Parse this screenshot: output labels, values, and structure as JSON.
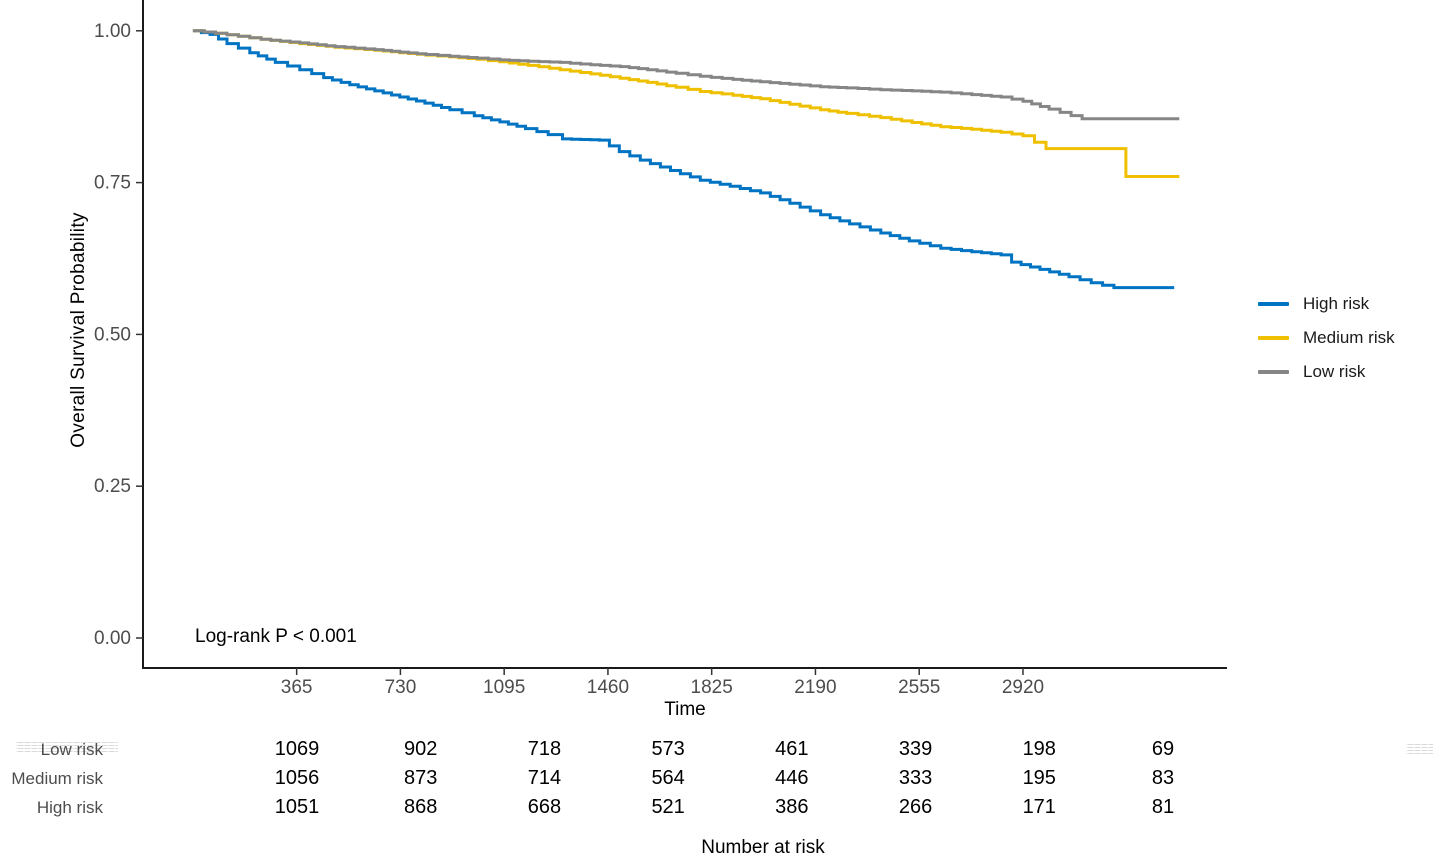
{
  "figure": {
    "y_axis_title": "Overall Survival Probability",
    "x_axis_title": "Time",
    "annotation": "Log-rank P < 0.001"
  },
  "legend": {
    "items": [
      {
        "label": "High risk",
        "color": "#0073C2"
      },
      {
        "label": "Medium risk",
        "color": "#EFC000"
      },
      {
        "label": "Low risk",
        "color": "#868686"
      }
    ]
  },
  "chart_data": {
    "type": "line",
    "subtype": "kaplan-meier-step-survival",
    "title": "",
    "xlabel": "Time",
    "ylabel": "Overall Survival Probability",
    "xlim": [
      0,
      3650
    ],
    "ylim": [
      0.0,
      1.0
    ],
    "grid": false,
    "legend_position": "right",
    "annotation": "Log-rank P < 0.001",
    "x_ticks": [
      365,
      730,
      1095,
      1460,
      1825,
      2190,
      2555,
      2920
    ],
    "y_ticks": [
      1.0,
      0.75,
      0.5,
      0.25,
      0.0
    ],
    "series": [
      {
        "name": "High risk",
        "color": "#0073C2",
        "points": [
          [
            0,
            1.0
          ],
          [
            60,
            0.994
          ],
          [
            120,
            0.979
          ],
          [
            200,
            0.964
          ],
          [
            290,
            0.948
          ],
          [
            376,
            0.936
          ],
          [
            460,
            0.923
          ],
          [
            552,
            0.911
          ],
          [
            640,
            0.901
          ],
          [
            728,
            0.891
          ],
          [
            816,
            0.881
          ],
          [
            904,
            0.87
          ],
          [
            990,
            0.86
          ],
          [
            1080,
            0.85
          ],
          [
            1170,
            0.839
          ],
          [
            1250,
            0.829
          ],
          [
            1300,
            0.822
          ],
          [
            1430,
            0.82
          ],
          [
            1500,
            0.801
          ],
          [
            1574,
            0.787
          ],
          [
            1680,
            0.77
          ],
          [
            1785,
            0.754
          ],
          [
            1890,
            0.744
          ],
          [
            1997,
            0.733
          ],
          [
            2100,
            0.716
          ],
          [
            2208,
            0.697
          ],
          [
            2310,
            0.682
          ],
          [
            2420,
            0.667
          ],
          [
            2520,
            0.654
          ],
          [
            2631,
            0.642
          ],
          [
            2740,
            0.636
          ],
          [
            2843,
            0.631
          ],
          [
            2880,
            0.619
          ],
          [
            2980,
            0.607
          ],
          [
            3082,
            0.595
          ],
          [
            3160,
            0.585
          ],
          [
            3240,
            0.577
          ],
          [
            3452,
            0.577
          ]
        ]
      },
      {
        "name": "Medium risk",
        "color": "#EFC000",
        "points": [
          [
            0,
            1.0
          ],
          [
            80,
            0.996
          ],
          [
            160,
            0.991
          ],
          [
            240,
            0.986
          ],
          [
            376,
            0.979
          ],
          [
            500,
            0.973
          ],
          [
            640,
            0.968
          ],
          [
            728,
            0.964
          ],
          [
            820,
            0.96
          ],
          [
            904,
            0.957
          ],
          [
            1000,
            0.953
          ],
          [
            1080,
            0.949
          ],
          [
            1180,
            0.943
          ],
          [
            1292,
            0.936
          ],
          [
            1400,
            0.929
          ],
          [
            1503,
            0.922
          ],
          [
            1600,
            0.915
          ],
          [
            1700,
            0.907
          ],
          [
            1785,
            0.9
          ],
          [
            1900,
            0.894
          ],
          [
            1997,
            0.888
          ],
          [
            2100,
            0.879
          ],
          [
            2208,
            0.87
          ],
          [
            2300,
            0.864
          ],
          [
            2420,
            0.857
          ],
          [
            2530,
            0.849
          ],
          [
            2631,
            0.842
          ],
          [
            2740,
            0.838
          ],
          [
            2843,
            0.833
          ],
          [
            2920,
            0.827
          ],
          [
            3001,
            0.806
          ],
          [
            3278,
            0.806
          ],
          [
            3282,
            0.76
          ],
          [
            3470,
            0.76
          ]
        ]
      },
      {
        "name": "Low risk",
        "color": "#868686",
        "points": [
          [
            0,
            1.0
          ],
          [
            80,
            0.996
          ],
          [
            160,
            0.991
          ],
          [
            240,
            0.986
          ],
          [
            376,
            0.98
          ],
          [
            500,
            0.974
          ],
          [
            640,
            0.969
          ],
          [
            728,
            0.965
          ],
          [
            820,
            0.961
          ],
          [
            904,
            0.958
          ],
          [
            1000,
            0.955
          ],
          [
            1080,
            0.952
          ],
          [
            1180,
            0.95
          ],
          [
            1292,
            0.948
          ],
          [
            1400,
            0.944
          ],
          [
            1503,
            0.941
          ],
          [
            1600,
            0.936
          ],
          [
            1700,
            0.93
          ],
          [
            1785,
            0.925
          ],
          [
            1900,
            0.92
          ],
          [
            1997,
            0.916
          ],
          [
            2100,
            0.912
          ],
          [
            2208,
            0.908
          ],
          [
            2300,
            0.906
          ],
          [
            2420,
            0.903
          ],
          [
            2531,
            0.901
          ],
          [
            2631,
            0.899
          ],
          [
            2740,
            0.895
          ],
          [
            2843,
            0.891
          ],
          [
            2920,
            0.884
          ],
          [
            3012,
            0.871
          ],
          [
            3128,
            0.855
          ],
          [
            3470,
            0.855
          ]
        ]
      }
    ],
    "risk_table": {
      "title": "Number at risk",
      "times": [
        365,
        730,
        1095,
        1460,
        1825,
        2190,
        2555,
        2920
      ],
      "rows": [
        {
          "label": "Low risk",
          "counts": [
            1069,
            902,
            718,
            573,
            461,
            339,
            198,
            69
          ]
        },
        {
          "label": "Medium risk",
          "counts": [
            1056,
            873,
            714,
            564,
            446,
            333,
            195,
            83
          ]
        },
        {
          "label": "High risk",
          "counts": [
            1051,
            868,
            668,
            521,
            386,
            266,
            171,
            81
          ]
        }
      ]
    }
  }
}
